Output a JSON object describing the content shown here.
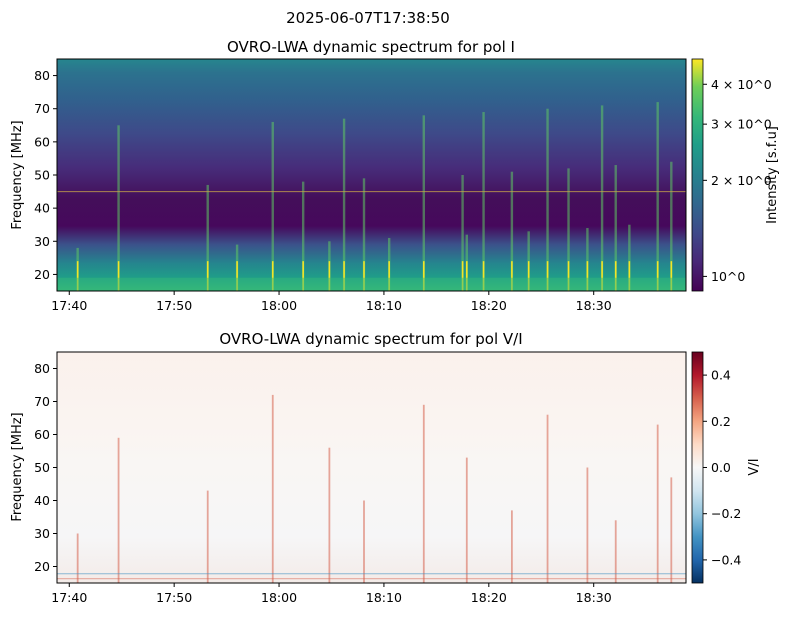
{
  "suptitle": "2025-06-07T17:38:50",
  "chart_data": [
    {
      "type": "heatmap",
      "title": "OVRO-LWA dynamic spectrum for pol I",
      "ylabel": "Frequency [MHz]",
      "xlabel": "",
      "x_ticks": [
        "17:40",
        "17:50",
        "18:00",
        "18:10",
        "18:20",
        "18:30"
      ],
      "x_tick_minutes": [
        40,
        50,
        60,
        70,
        80,
        90
      ],
      "xlim_minutes_after_17h": [
        38.83,
        98.8
      ],
      "y_ticks": [
        20,
        30,
        40,
        50,
        60,
        70,
        80
      ],
      "ylim": [
        15,
        85
      ],
      "colormap": "viridis",
      "colorbar": {
        "label": "Intensity [s.f.u]",
        "scale": "log",
        "ticks": [
          "4 × 10^0",
          "3 × 10^0",
          "2 × 10^0",
          "10^0"
        ],
        "tick_values": [
          4,
          3,
          2,
          1
        ],
        "range": [
          0.9,
          4.8
        ]
      },
      "features": {
        "rfi_line_mhz": 45,
        "burst_minutes": [
          40.8,
          44.7,
          53.2,
          56.0,
          59.4,
          62.3,
          64.8,
          66.2,
          68.1,
          70.5,
          73.8,
          77.5,
          77.9,
          79.5,
          82.2,
          83.8,
          85.6,
          87.6,
          89.4,
          90.8,
          92.1,
          93.4,
          96.1,
          97.4
        ]
      }
    },
    {
      "type": "heatmap",
      "title": "OVRO-LWA dynamic spectrum for pol V/I",
      "ylabel": "Frequency [MHz]",
      "xlabel": "",
      "x_ticks": [
        "17:40",
        "17:50",
        "18:00",
        "18:10",
        "18:20",
        "18:30"
      ],
      "x_tick_minutes": [
        40,
        50,
        60,
        70,
        80,
        90
      ],
      "xlim_minutes_after_17h": [
        38.83,
        98.8
      ],
      "y_ticks": [
        20,
        30,
        40,
        50,
        60,
        70,
        80
      ],
      "ylim": [
        15,
        85
      ],
      "colormap": "RdBu_r",
      "colorbar": {
        "label": "V/I",
        "scale": "linear",
        "ticks": [
          "0.4",
          "0.2",
          "0.0",
          "−0.2",
          "−0.4"
        ],
        "tick_values": [
          0.4,
          0.2,
          0.0,
          -0.2,
          -0.4
        ],
        "range": [
          -0.5,
          0.5
        ]
      },
      "features": {
        "burst_minutes": [
          40.8,
          44.7,
          53.2,
          59.4,
          64.8,
          68.1,
          73.8,
          77.9,
          82.2,
          85.6,
          89.4,
          92.1,
          96.1,
          97.4
        ]
      }
    }
  ]
}
